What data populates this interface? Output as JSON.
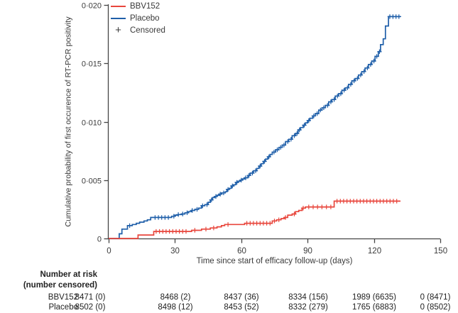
{
  "figure": {
    "y_axis_label": "Cumulative probability of first occurence of RT-PCR positivity",
    "x_axis_label": "Time since start of efficacy follow-up (days)"
  },
  "legend": {
    "items": [
      {
        "label": "BBV152",
        "color": "#e8463c",
        "type": "line"
      },
      {
        "label": "Placebo",
        "color": "#1f5fa9",
        "type": "line"
      },
      {
        "label": "Censored",
        "marker": "+",
        "type": "marker"
      }
    ]
  },
  "chart_data": {
    "type": "line",
    "subtype": "kaplan-meier-cumulative-incidence-steps",
    "title": "",
    "xlabel": "Time since start of efficacy follow-up (days)",
    "ylabel": "Cumulative probability of first occurence of RT-PCR positivity",
    "xlim": [
      0,
      150
    ],
    "ylim": [
      0,
      0.02
    ],
    "grid": false,
    "legend_position": "top-left-inside",
    "x_ticks": [
      {
        "v": 0,
        "label": "0"
      },
      {
        "v": 30,
        "label": "30"
      },
      {
        "v": 60,
        "label": "60"
      },
      {
        "v": 90,
        "label": "90"
      },
      {
        "v": 120,
        "label": "120"
      },
      {
        "v": 150,
        "label": "150"
      }
    ],
    "y_ticks": [
      {
        "v": 0,
        "label": "0"
      },
      {
        "v": 0.005,
        "label": "0·005"
      },
      {
        "v": 0.01,
        "label": "0·010"
      },
      {
        "v": 0.015,
        "label": "0·015"
      },
      {
        "v": 0.02,
        "label": "0·020"
      }
    ],
    "censor_marker": "+",
    "series": [
      {
        "name": "BBV152",
        "color": "#e8463c",
        "points": [
          [
            0,
            0
          ],
          [
            13.3,
            0.0003
          ],
          [
            20.4,
            0.0006
          ],
          [
            37.5,
            0.0007
          ],
          [
            42,
            0.0008
          ],
          [
            46,
            0.0009
          ],
          [
            49,
            0.001
          ],
          [
            51,
            0.0011
          ],
          [
            52.5,
            0.0012
          ],
          [
            61.5,
            0.0013
          ],
          [
            74,
            0.0015
          ],
          [
            76,
            0.0016
          ],
          [
            78,
            0.0017
          ],
          [
            79.5,
            0.0018
          ],
          [
            81,
            0.002
          ],
          [
            83,
            0.0021
          ],
          [
            84.5,
            0.0023
          ],
          [
            86,
            0.0024
          ],
          [
            87.5,
            0.0026
          ],
          [
            89,
            0.0027
          ],
          [
            102,
            0.0032
          ],
          [
            132,
            0.0032
          ]
        ],
        "censor_days": [
          21.5,
          23,
          24.5,
          26,
          27.5,
          29,
          30.5,
          32,
          33.5,
          35,
          39,
          44,
          47.5,
          54,
          62.5,
          64,
          65.5,
          67,
          68.5,
          70,
          71.5,
          73,
          75,
          77,
          80,
          84,
          88,
          90.5,
          92.5,
          94.5,
          96.5,
          98.5,
          100.5,
          103.3,
          104.8,
          106.3,
          107.8,
          109.3,
          110.8,
          112.3,
          113.8,
          115.3,
          116.8,
          118.3,
          119.8,
          121.3,
          122.8,
          124.3,
          125.8,
          127.3,
          128.8,
          130.3
        ]
      },
      {
        "name": "Placebo",
        "color": "#1f5fa9",
        "points": [
          [
            0,
            0
          ],
          [
            4.8,
            0.0004
          ],
          [
            6,
            0.0008
          ],
          [
            8.5,
            0.0011
          ],
          [
            10.7,
            0.0012
          ],
          [
            12.5,
            0.0013
          ],
          [
            14,
            0.0014
          ],
          [
            16,
            0.0015
          ],
          [
            17.5,
            0.0016
          ],
          [
            19,
            0.0018
          ],
          [
            28.5,
            0.0019
          ],
          [
            30,
            0.002
          ],
          [
            31.5,
            0.00205
          ],
          [
            33,
            0.0021
          ],
          [
            34.5,
            0.0022
          ],
          [
            36,
            0.0023
          ],
          [
            37.5,
            0.0024
          ],
          [
            39,
            0.0025
          ],
          [
            40.7,
            0.0026
          ],
          [
            42,
            0.0028
          ],
          [
            43.5,
            0.0029
          ],
          [
            45,
            0.0031
          ],
          [
            46,
            0.0033
          ],
          [
            47,
            0.0035
          ],
          [
            48,
            0.0036
          ],
          [
            49,
            0.0037
          ],
          [
            50,
            0.0038
          ],
          [
            51,
            0.0039
          ],
          [
            52.7,
            0.004
          ],
          [
            53.5,
            0.0042
          ],
          [
            54.5,
            0.0043
          ],
          [
            55.5,
            0.0045
          ],
          [
            56.5,
            0.0046
          ],
          [
            57.5,
            0.0048
          ],
          [
            58.5,
            0.0049
          ],
          [
            59.5,
            0.005
          ],
          [
            60.5,
            0.0051
          ],
          [
            61.5,
            0.0052
          ],
          [
            63,
            0.0054
          ],
          [
            64,
            0.0056
          ],
          [
            65.5,
            0.0058
          ],
          [
            67,
            0.006
          ],
          [
            68,
            0.0062
          ],
          [
            69,
            0.0064
          ],
          [
            70,
            0.0066
          ],
          [
            71,
            0.0068
          ],
          [
            72,
            0.007
          ],
          [
            73,
            0.0072
          ],
          [
            74,
            0.0074
          ],
          [
            75.5,
            0.0076
          ],
          [
            77,
            0.0078
          ],
          [
            78.5,
            0.008
          ],
          [
            80,
            0.0083
          ],
          [
            81.5,
            0.0085
          ],
          [
            83,
            0.0088
          ],
          [
            84.5,
            0.009
          ],
          [
            85.7,
            0.0093
          ],
          [
            86.8,
            0.0095
          ],
          [
            88,
            0.0097
          ],
          [
            89,
            0.0099
          ],
          [
            90,
            0.0101
          ],
          [
            91,
            0.0103
          ],
          [
            92.3,
            0.0105
          ],
          [
            93.5,
            0.0107
          ],
          [
            95,
            0.011
          ],
          [
            96.5,
            0.0112
          ],
          [
            98,
            0.0114
          ],
          [
            99.5,
            0.0117
          ],
          [
            101,
            0.0119
          ],
          [
            102.5,
            0.0122
          ],
          [
            104,
            0.0124
          ],
          [
            105.5,
            0.0127
          ],
          [
            107,
            0.0129
          ],
          [
            108.5,
            0.0132
          ],
          [
            110,
            0.0135
          ],
          [
            111.5,
            0.0137
          ],
          [
            113,
            0.014
          ],
          [
            114.5,
            0.0143
          ],
          [
            116,
            0.0146
          ],
          [
            117.5,
            0.0149
          ],
          [
            119,
            0.0152
          ],
          [
            120.5,
            0.0156
          ],
          [
            122,
            0.016
          ],
          [
            123,
            0.0166
          ],
          [
            124.2,
            0.0171
          ],
          [
            125.2,
            0.0182
          ],
          [
            126.6,
            0.019
          ],
          [
            132,
            0.019
          ]
        ],
        "censor_days": [
          9.5,
          21,
          22.5,
          24,
          25.5,
          27,
          29.5,
          31.5,
          33.5,
          35.5,
          37.8,
          40,
          42.5,
          44.5,
          46.5,
          48.5,
          50.5,
          52,
          54,
          56,
          58,
          60,
          62,
          63.5,
          65,
          66.5,
          68.5,
          70.5,
          72.5,
          74.8,
          76.3,
          77.8,
          79.3,
          81,
          82.5,
          84,
          85.2,
          86.3,
          88.5,
          90.5,
          92.8,
          94.3,
          95.8,
          97.3,
          99,
          100.5,
          102,
          103.5,
          105,
          106.5,
          108,
          109.5,
          111,
          112.5,
          114,
          115.5,
          117,
          118.5,
          120,
          121.3,
          122.5,
          127.2,
          128.6,
          130,
          131.3
        ]
      }
    ]
  },
  "risk_table": {
    "header_line1": "Number at risk",
    "header_line2": "(number censored)",
    "columns_days": [
      0,
      30,
      60,
      90,
      120,
      150
    ],
    "rows": [
      {
        "label": "BBV152",
        "values": [
          "8471 (0)",
          "8468 (2)",
          "8437 (36)",
          "8334 (156)",
          "1989 (6635)",
          "0 (8471)"
        ]
      },
      {
        "label": "Placebo",
        "values": [
          "8502 (0)",
          "8498 (12)",
          "8453 (52)",
          "8332 (279)",
          "1765 (6883)",
          "0 (8502)"
        ]
      }
    ]
  }
}
